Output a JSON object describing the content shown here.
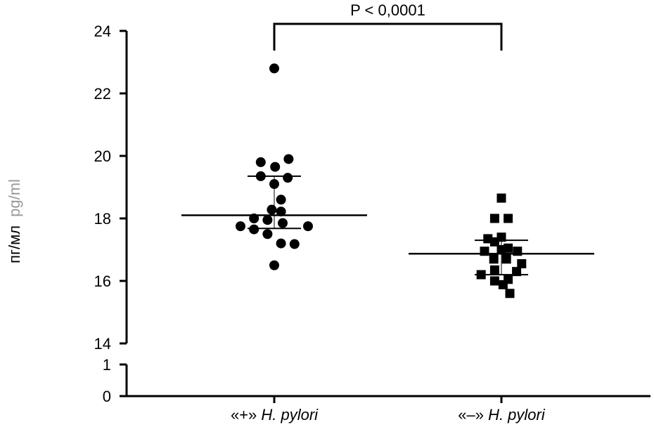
{
  "chart_data": {
    "type": "scatter",
    "ylabel": {
      "primary": "пг/мл",
      "secondary": "pg/ml"
    },
    "y_axis": {
      "broken": true,
      "upper_range": [
        14,
        24
      ],
      "upper_ticks": [
        "14",
        "16",
        "18",
        "20",
        "22",
        "24"
      ],
      "lower_range": [
        0,
        1
      ],
      "lower_ticks": [
        "0",
        "1"
      ]
    },
    "groups": [
      {
        "label_prefix": "«+» ",
        "label_italic": "H. pylori",
        "marker": "circle",
        "mean": 18.1,
        "sd_upper": 19.35,
        "sd_lower": 17.68,
        "points": [
          {
            "x": 0,
            "y": 22.8
          },
          {
            "x": -0.8,
            "y": 19.8
          },
          {
            "x": 0.05,
            "y": 19.65
          },
          {
            "x": 0.85,
            "y": 19.9
          },
          {
            "x": -0.8,
            "y": 19.35
          },
          {
            "x": 0.8,
            "y": 19.3
          },
          {
            "x": 0,
            "y": 19.1
          },
          {
            "x": -1.2,
            "y": 18.0
          },
          {
            "x": -0.4,
            "y": 17.95
          },
          {
            "x": 0.4,
            "y": 18.6
          },
          {
            "x": -0.15,
            "y": 18.28
          },
          {
            "x": 0.4,
            "y": 18.22
          },
          {
            "x": -2.0,
            "y": 17.75
          },
          {
            "x": -1.2,
            "y": 17.65
          },
          {
            "x": -0.4,
            "y": 17.5
          },
          {
            "x": 0.5,
            "y": 17.85
          },
          {
            "x": 2.0,
            "y": 17.75
          },
          {
            "x": 0.4,
            "y": 17.2
          },
          {
            "x": 1.2,
            "y": 17.18
          },
          {
            "x": 0.0,
            "y": 16.5
          }
        ]
      },
      {
        "label_prefix": "«–» ",
        "label_italic": "H. pylori",
        "marker": "square",
        "mean": 16.87,
        "sd_upper": 17.3,
        "sd_lower": 16.2,
        "points": [
          {
            "x": 0,
            "y": 18.65
          },
          {
            "x": -0.4,
            "y": 18.0
          },
          {
            "x": 0.4,
            "y": 18.0
          },
          {
            "x": 0,
            "y": 17.4
          },
          {
            "x": -0.8,
            "y": 17.35
          },
          {
            "x": -0.4,
            "y": 17.25
          },
          {
            "x": 0.4,
            "y": 17.05
          },
          {
            "x": -1.0,
            "y": 16.95
          },
          {
            "x": 0,
            "y": 17.0
          },
          {
            "x": 0.95,
            "y": 16.95
          },
          {
            "x": -0.45,
            "y": 16.7
          },
          {
            "x": 0.3,
            "y": 16.7
          },
          {
            "x": 1.2,
            "y": 16.55
          },
          {
            "x": -0.4,
            "y": 16.35
          },
          {
            "x": 0.9,
            "y": 16.3
          },
          {
            "x": -1.2,
            "y": 16.2
          },
          {
            "x": -0.4,
            "y": 16.0
          },
          {
            "x": 0.4,
            "y": 16.05
          },
          {
            "x": 0.1,
            "y": 15.88
          },
          {
            "x": 0.5,
            "y": 15.6
          }
        ]
      }
    ],
    "significance": {
      "label": "P < 0,0001",
      "between": [
        0,
        1
      ]
    }
  }
}
